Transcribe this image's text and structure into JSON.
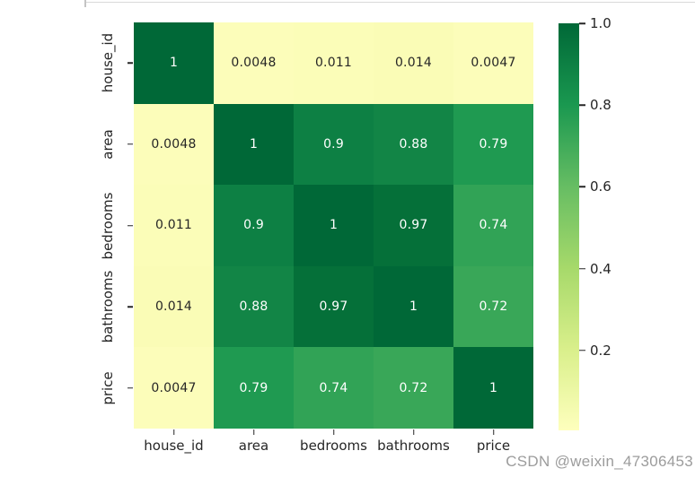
{
  "watermark": {
    "text": "CSDN @weixin_47306453",
    "color": "#9c9c9c"
  },
  "colors": {
    "background": "#ffffff",
    "axis_text": "#262626",
    "top_rule": "#d9d9d9"
  },
  "chart_data": {
    "type": "heatmap",
    "title": "",
    "xlabel": "",
    "ylabel": "",
    "variables": [
      "house_id",
      "area",
      "bedrooms",
      "bathrooms",
      "price"
    ],
    "matrix": [
      [
        1,
        0.0048,
        0.011,
        0.014,
        0.0047
      ],
      [
        0.0048,
        1,
        0.9,
        0.88,
        0.79
      ],
      [
        0.011,
        0.9,
        1,
        0.97,
        0.74
      ],
      [
        0.014,
        0.88,
        0.97,
        1,
        0.72
      ],
      [
        0.0047,
        0.79,
        0.74,
        0.72,
        1
      ]
    ],
    "annotations": [
      [
        "1",
        "0.0048",
        "0.011",
        "0.014",
        "0.0047"
      ],
      [
        "0.0048",
        "1",
        "0.9",
        "0.88",
        "0.79"
      ],
      [
        "0.011",
        "0.9",
        "1",
        "0.97",
        "0.74"
      ],
      [
        "0.014",
        "0.88",
        "0.97",
        "1",
        "0.72"
      ],
      [
        "0.0047",
        "0.79",
        "0.74",
        "0.72",
        "1"
      ]
    ],
    "cell_colors": [
      [
        "#006837",
        "#fcfdba",
        "#fbfdb8",
        "#fafcb6",
        "#fcfdba"
      ],
      [
        "#fcfdba",
        "#006837",
        "#0d8044",
        "#128546",
        "#1f9a51"
      ],
      [
        "#fbfdb8",
        "#0d8044",
        "#006837",
        "#057039",
        "#31a356"
      ],
      [
        "#fafcb6",
        "#128546",
        "#057039",
        "#006837",
        "#39a758"
      ],
      [
        "#fcfdba",
        "#1f9a51",
        "#31a356",
        "#39a758",
        "#006837"
      ]
    ],
    "text_colors": [
      [
        "#ffffff",
        "#262626",
        "#262626",
        "#262626",
        "#262626"
      ],
      [
        "#262626",
        "#ffffff",
        "#ffffff",
        "#ffffff",
        "#ffffff"
      ],
      [
        "#262626",
        "#ffffff",
        "#ffffff",
        "#ffffff",
        "#ffffff"
      ],
      [
        "#262626",
        "#ffffff",
        "#ffffff",
        "#ffffff",
        "#ffffff"
      ],
      [
        "#262626",
        "#ffffff",
        "#ffffff",
        "#ffffff",
        "#ffffff"
      ]
    ],
    "colorbar": {
      "tick_labels": [
        "1.0",
        "0.8",
        "0.6",
        "0.4",
        "0.2"
      ],
      "min": 0.0047,
      "max": 1.0,
      "gradient_bottom_to_top": [
        "#feffbd",
        "#d9ef8b",
        "#a6d96a",
        "#66bd63",
        "#1a9850",
        "#006837"
      ]
    },
    "legend": "colorbar-right",
    "grid": "off"
  }
}
